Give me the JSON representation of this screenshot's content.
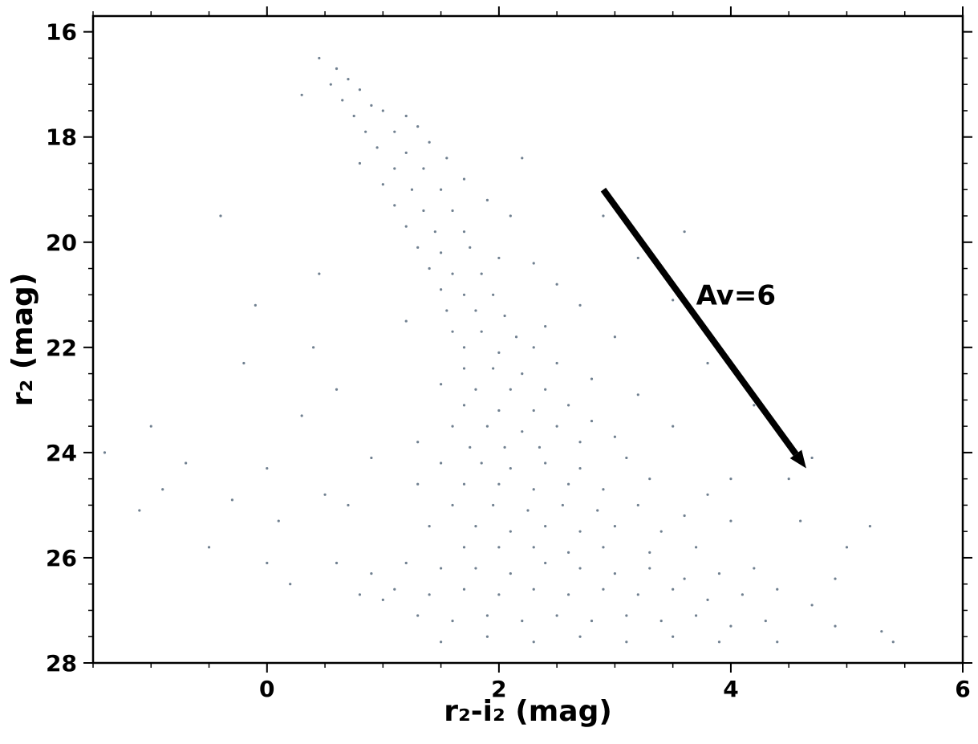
{
  "chart_data": {
    "type": "scatter",
    "xlabel": "r₂-i₂ (mag)",
    "ylabel": "r₂ (mag)",
    "xlim": [
      -1.5,
      6.0
    ],
    "ylim": [
      28,
      15.7
    ],
    "xticks": [
      0,
      2,
      4,
      6
    ],
    "yticks": [
      16,
      18,
      20,
      22,
      24,
      26,
      28
    ],
    "minor_ticks": 4,
    "color": "#708090",
    "annotation": {
      "text": "Av=6",
      "xy": [
        3.7,
        21.0
      ]
    },
    "arrow": {
      "from": [
        2.9,
        19.0
      ],
      "to": [
        4.65,
        24.3
      ],
      "color": "#000000"
    },
    "x": [
      0.45,
      0.6,
      0.7,
      0.55,
      0.8,
      0.65,
      0.9,
      0.75,
      1.0,
      1.2,
      0.85,
      1.1,
      1.3,
      0.95,
      1.2,
      1.4,
      0.8,
      1.1,
      1.35,
      1.55,
      1.0,
      1.25,
      1.5,
      1.7,
      1.1,
      1.35,
      1.6,
      1.9,
      1.2,
      1.45,
      1.7,
      2.1,
      1.3,
      1.5,
      1.75,
      2.0,
      1.4,
      1.6,
      1.85,
      2.3,
      1.5,
      1.7,
      1.95,
      2.5,
      1.55,
      1.8,
      2.05,
      2.7,
      1.6,
      1.85,
      2.15,
      1.2,
      2.4,
      1.7,
      2.0,
      2.3,
      3.0,
      1.7,
      1.95,
      2.2,
      2.5,
      1.5,
      1.8,
      2.1,
      2.4,
      2.8,
      1.7,
      2.0,
      2.3,
      2.6,
      3.2,
      1.6,
      1.9,
      2.2,
      2.5,
      2.8,
      1.3,
      1.75,
      2.05,
      2.35,
      2.7,
      3.0,
      3.5,
      1.5,
      1.85,
      2.1,
      2.4,
      2.7,
      3.1,
      1.3,
      1.7,
      2.0,
      2.3,
      2.6,
      2.9,
      3.3,
      3.8,
      1.6,
      1.95,
      2.25,
      2.55,
      2.85,
      3.2,
      3.6,
      1.4,
      1.8,
      2.1,
      2.4,
      2.7,
      3.0,
      3.4,
      4.0,
      1.7,
      2.0,
      2.3,
      2.6,
      2.9,
      3.3,
      3.7,
      0.6,
      0.9,
      1.2,
      1.5,
      1.8,
      2.1,
      2.4,
      2.7,
      3.0,
      3.3,
      3.6,
      3.9,
      4.2,
      0.8,
      1.1,
      1.4,
      1.7,
      2.0,
      2.3,
      2.6,
      2.9,
      3.2,
      3.5,
      3.8,
      4.1,
      4.4,
      4.7,
      1.3,
      1.6,
      1.9,
      2.2,
      2.5,
      2.8,
      3.1,
      3.4,
      3.7,
      4.0,
      4.3,
      1.5,
      1.9,
      2.3,
      2.7,
      3.1,
      3.5,
      3.9,
      4.4,
      4.9,
      5.3,
      -1.4,
      -1.1,
      -0.9,
      -0.7,
      -0.5,
      -0.4,
      -0.3,
      -0.2,
      0.0,
      0.1,
      0.2,
      0.3,
      0.4,
      0.45,
      0.5,
      0.3,
      -0.1,
      0.0,
      -1.0,
      0.7,
      0.9,
      1.0,
      0.6,
      3.6,
      3.5,
      3.8,
      4.2,
      4.5,
      4.7,
      5.0,
      5.2,
      5.4,
      4.9,
      4.0,
      3.2,
      2.9,
      2.2,
      4.6
    ],
    "values": [
      16.5,
      16.7,
      16.9,
      17.0,
      17.1,
      17.3,
      17.4,
      17.6,
      17.5,
      17.6,
      17.9,
      17.9,
      17.8,
      18.2,
      18.3,
      18.1,
      18.5,
      18.6,
      18.6,
      18.4,
      18.9,
      19.0,
      19.0,
      18.8,
      19.3,
      19.4,
      19.4,
      19.2,
      19.7,
      19.8,
      19.8,
      19.5,
      20.1,
      20.2,
      20.1,
      20.3,
      20.5,
      20.6,
      20.6,
      20.4,
      20.9,
      21.0,
      21.0,
      20.8,
      21.3,
      21.3,
      21.4,
      21.2,
      21.7,
      21.7,
      21.8,
      21.5,
      21.6,
      22.0,
      22.1,
      22.0,
      21.8,
      22.4,
      22.4,
      22.5,
      22.3,
      22.7,
      22.8,
      22.8,
      22.8,
      22.6,
      23.1,
      23.2,
      23.2,
      23.1,
      22.9,
      23.5,
      23.5,
      23.6,
      23.5,
      23.4,
      23.8,
      23.9,
      23.9,
      23.9,
      23.8,
      23.7,
      23.5,
      24.2,
      24.2,
      24.3,
      24.2,
      24.3,
      24.1,
      24.6,
      24.6,
      24.6,
      24.7,
      24.6,
      24.7,
      24.5,
      24.8,
      25.0,
      25.0,
      25.1,
      25.0,
      25.1,
      25.0,
      25.2,
      25.4,
      25.4,
      25.5,
      25.4,
      25.5,
      25.4,
      25.5,
      25.3,
      25.8,
      25.8,
      25.8,
      25.9,
      25.8,
      25.9,
      25.8,
      26.1,
      26.3,
      26.1,
      26.2,
      26.2,
      26.3,
      26.1,
      26.2,
      26.3,
      26.2,
      26.4,
      26.3,
      26.2,
      26.7,
      26.6,
      26.7,
      26.6,
      26.7,
      26.6,
      26.7,
      26.6,
      26.7,
      26.6,
      26.8,
      26.7,
      26.6,
      26.9,
      27.1,
      27.2,
      27.1,
      27.2,
      27.1,
      27.2,
      27.1,
      27.2,
      27.1,
      27.3,
      27.2,
      27.6,
      27.5,
      27.6,
      27.5,
      27.6,
      27.5,
      27.6,
      27.6,
      27.3,
      27.4,
      24.0,
      25.1,
      24.7,
      24.2,
      25.8,
      19.5,
      24.9,
      22.3,
      24.3,
      25.3,
      26.5,
      23.3,
      22.0,
      20.6,
      24.8,
      17.2,
      21.2,
      26.1,
      23.5,
      25.0,
      24.1,
      26.8,
      22.8,
      19.8,
      21.1,
      22.3,
      23.1,
      24.5,
      24.1,
      25.8,
      25.4,
      27.6,
      26.4,
      24.5,
      20.3,
      19.5,
      18.4,
      25.3
    ]
  }
}
